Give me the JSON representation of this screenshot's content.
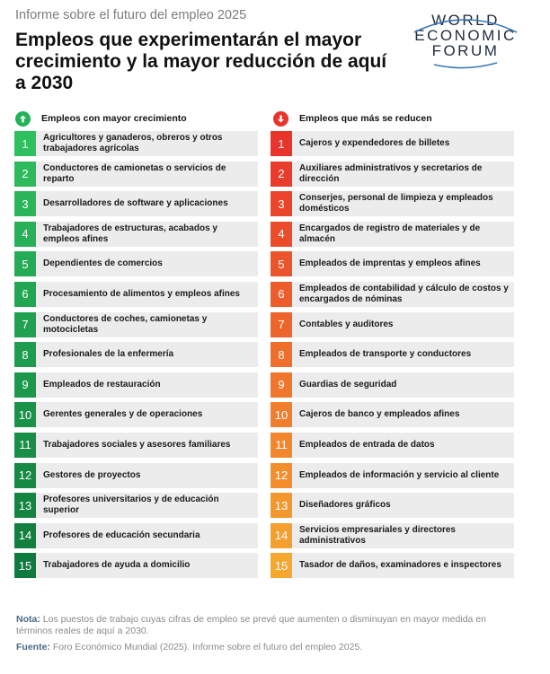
{
  "header": {
    "subtitle": "Informe sobre el futuro del empleo 2025",
    "title": "Empleos que experimentarán el mayor crecimiento y la mayor reducción de aquí a 2030"
  },
  "logo": {
    "line1": "WORLD",
    "line2": "ECONOMIC",
    "line3": "FORUM"
  },
  "colors": {
    "growth": [
      "#2ebf5e",
      "#0f7a3d"
    ],
    "decline": [
      "#e8342a",
      "#f6a72e"
    ]
  },
  "growth": {
    "heading": "Empleos con mayor crecimiento",
    "icon": "arrow-up-icon",
    "items": [
      {
        "num": "1",
        "label": "Agricultores y ganaderos, obreros y otros trabajadores agrícolas"
      },
      {
        "num": "2",
        "label": "Conductores de camionetas o servicios de reparto"
      },
      {
        "num": "3",
        "label": "Desarrolladores de software y aplicaciones"
      },
      {
        "num": "4",
        "label": "Trabajadores de estructuras, acabados y empleos afines"
      },
      {
        "num": "5",
        "label": "Dependientes de comercios"
      },
      {
        "num": "6",
        "label": "Procesamiento de alimentos y empleos afines"
      },
      {
        "num": "7",
        "label": "Conductores de coches, camionetas y motocicletas"
      },
      {
        "num": "8",
        "label": "Profesionales de la enfermería"
      },
      {
        "num": "9",
        "label": "Empleados de restauración"
      },
      {
        "num": "10",
        "label": "Gerentes generales y de operaciones"
      },
      {
        "num": "11",
        "label": "Trabajadores sociales y asesores familiares"
      },
      {
        "num": "12",
        "label": "Gestores de proyectos"
      },
      {
        "num": "13",
        "label": "Profesores universitarios y de educación superior"
      },
      {
        "num": "14",
        "label": "Profesores de educación secundaria"
      },
      {
        "num": "15",
        "label": "Trabajadores de ayuda a domicilio"
      }
    ]
  },
  "decline": {
    "heading": "Empleos que más se reducen",
    "icon": "arrow-down-icon",
    "items": [
      {
        "num": "1",
        "label": "Cajeros y expendedores de billetes"
      },
      {
        "num": "2",
        "label": "Auxiliares administrativos y secretarios de dirección"
      },
      {
        "num": "3",
        "label": "Conserjes, personal de limpieza y empleados domésticos"
      },
      {
        "num": "4",
        "label": "Encargados de registro de materiales y de almacén"
      },
      {
        "num": "5",
        "label": "Empleados de imprentas y empleos afines"
      },
      {
        "num": "6",
        "label": "Empleados de contabilidad y cálculo de costos y encargados de nóminas"
      },
      {
        "num": "7",
        "label": "Contables y auditores"
      },
      {
        "num": "8",
        "label": "Empleados de transporte y conductores"
      },
      {
        "num": "9",
        "label": "Guardias de seguridad"
      },
      {
        "num": "10",
        "label": "Cajeros de banco y empleados afines"
      },
      {
        "num": "11",
        "label": "Empleados de entrada de datos"
      },
      {
        "num": "12",
        "label": "Empleados de información y servicio al cliente"
      },
      {
        "num": "13",
        "label": "Diseñadores gráficos"
      },
      {
        "num": "14",
        "label": "Servicios empresariales y directores administrativos"
      },
      {
        "num": "15",
        "label": "Tasador de daños, examinadores e inspectores"
      }
    ]
  },
  "footer": {
    "note_label": "Nota:",
    "note_text": " Los puestos de trabajo cuyas cifras de empleo se prevé que aumenten o disminuyan en mayor medida en términos reales de aquí a 2030.",
    "source_label": "Fuente:",
    "source_text": " Foro Económico Mundial (2025). Informe sobre el futuro del empleo 2025."
  }
}
